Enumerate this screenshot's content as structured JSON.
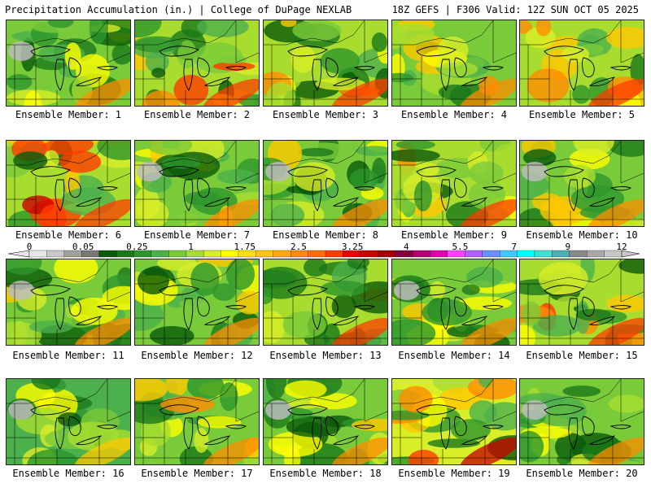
{
  "header": {
    "left": "Precipitation Accumulation (in.) | College of DuPage NEXLAB",
    "right": "18Z GEFS | F306 Valid: 12Z SUN OCT 05 2025"
  },
  "members": [
    {
      "label": "Ensemble Member: 1",
      "intensity": 0.35
    },
    {
      "label": "Ensemble Member: 2",
      "intensity": 0.6
    },
    {
      "label": "Ensemble Member: 3",
      "intensity": 0.5
    },
    {
      "label": "Ensemble Member: 4",
      "intensity": 0.4
    },
    {
      "label": "Ensemble Member: 5",
      "intensity": 0.55
    },
    {
      "label": "Ensemble Member: 6",
      "intensity": 0.65
    },
    {
      "label": "Ensemble Member: 7",
      "intensity": 0.35
    },
    {
      "label": "Ensemble Member: 8",
      "intensity": 0.3
    },
    {
      "label": "Ensemble Member: 9",
      "intensity": 0.55
    },
    {
      "label": "Ensemble Member: 10",
      "intensity": 0.35
    },
    {
      "label": "Ensemble Member: 11",
      "intensity": 0.3
    },
    {
      "label": "Ensemble Member: 12",
      "intensity": 0.4
    },
    {
      "label": "Ensemble Member: 13",
      "intensity": 0.5
    },
    {
      "label": "Ensemble Member: 14",
      "intensity": 0.3
    },
    {
      "label": "Ensemble Member: 15",
      "intensity": 0.6
    },
    {
      "label": "Ensemble Member: 16",
      "intensity": 0.2
    },
    {
      "label": "Ensemble Member: 17",
      "intensity": 0.4
    },
    {
      "label": "Ensemble Member: 18",
      "intensity": 0.3
    },
    {
      "label": "Ensemble Member: 19",
      "intensity": 0.7
    },
    {
      "label": "Ensemble Member: 20",
      "intensity": 0.3
    }
  ],
  "colorbar": {
    "labels": [
      "0",
      "0.05",
      "0.25",
      "1",
      "1.75",
      "2.5",
      "3.25",
      "4",
      "5.5",
      "7",
      "9",
      "12"
    ],
    "colors": [
      "#e8e8e8",
      "#c8c8c8",
      "#a0a0a0",
      "#787878",
      "#0a5a0a",
      "#1a781a",
      "#2d962d",
      "#4cb04c",
      "#7acb3a",
      "#a8dd30",
      "#d8ee28",
      "#ffff00",
      "#ffe100",
      "#ffc800",
      "#ffaa00",
      "#ff8c00",
      "#ff6e00",
      "#ff3c00",
      "#e60000",
      "#c80000",
      "#a00000",
      "#800040",
      "#b00070",
      "#dd00aa",
      "#ff44ff",
      "#b060ff",
      "#6a90ff",
      "#40c8ff",
      "#00ffff",
      "#40e0d0",
      "#4cb0b0",
      "#888888",
      "#a8a8a8",
      "#c8c8c8"
    ]
  }
}
